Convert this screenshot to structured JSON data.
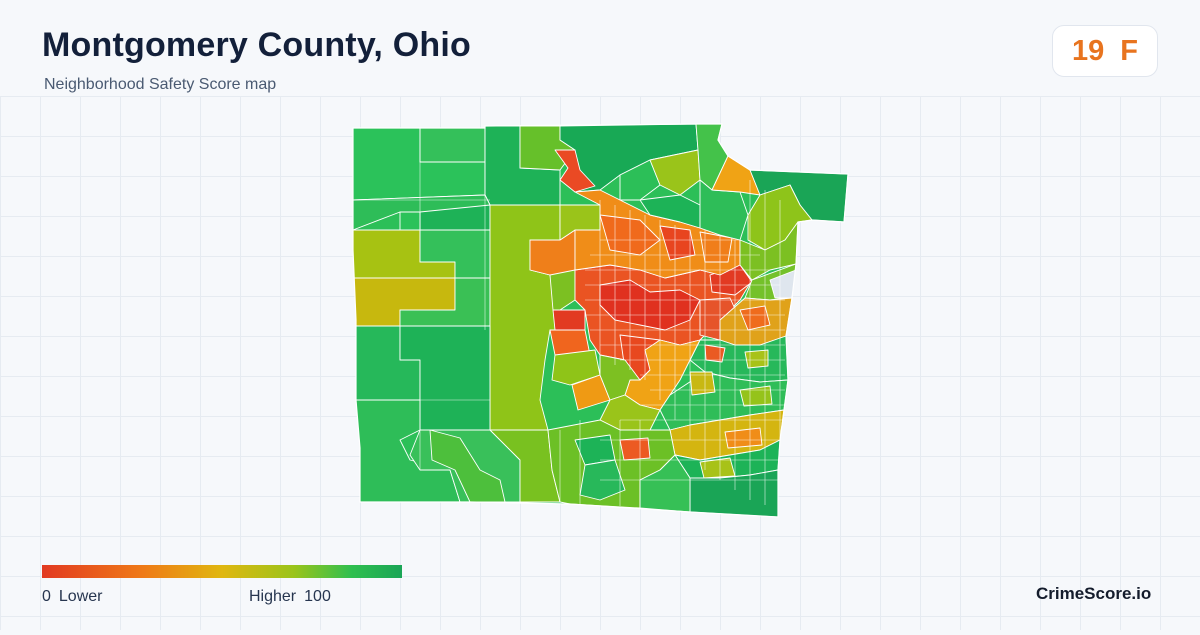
{
  "header": {
    "title": "Montgomery County, Ohio",
    "subtitle": "Neighborhood Safety Score map"
  },
  "score": {
    "value": "19",
    "grade": "F",
    "color": "#e8741f"
  },
  "map": {
    "region": "Montgomery County, Ohio",
    "palette": {
      "lowest": "#e23a22",
      "low": "#ef7a17",
      "middle": "#e0b710",
      "high": "#9ac41a",
      "highest": "#1aa556",
      "no_data": "#dfe6ee"
    }
  },
  "legend": {
    "min": "0",
    "min_label": "Lower",
    "max_label": "Higher",
    "max": "100"
  },
  "footer": {
    "brand": "CrimeScore.io"
  }
}
